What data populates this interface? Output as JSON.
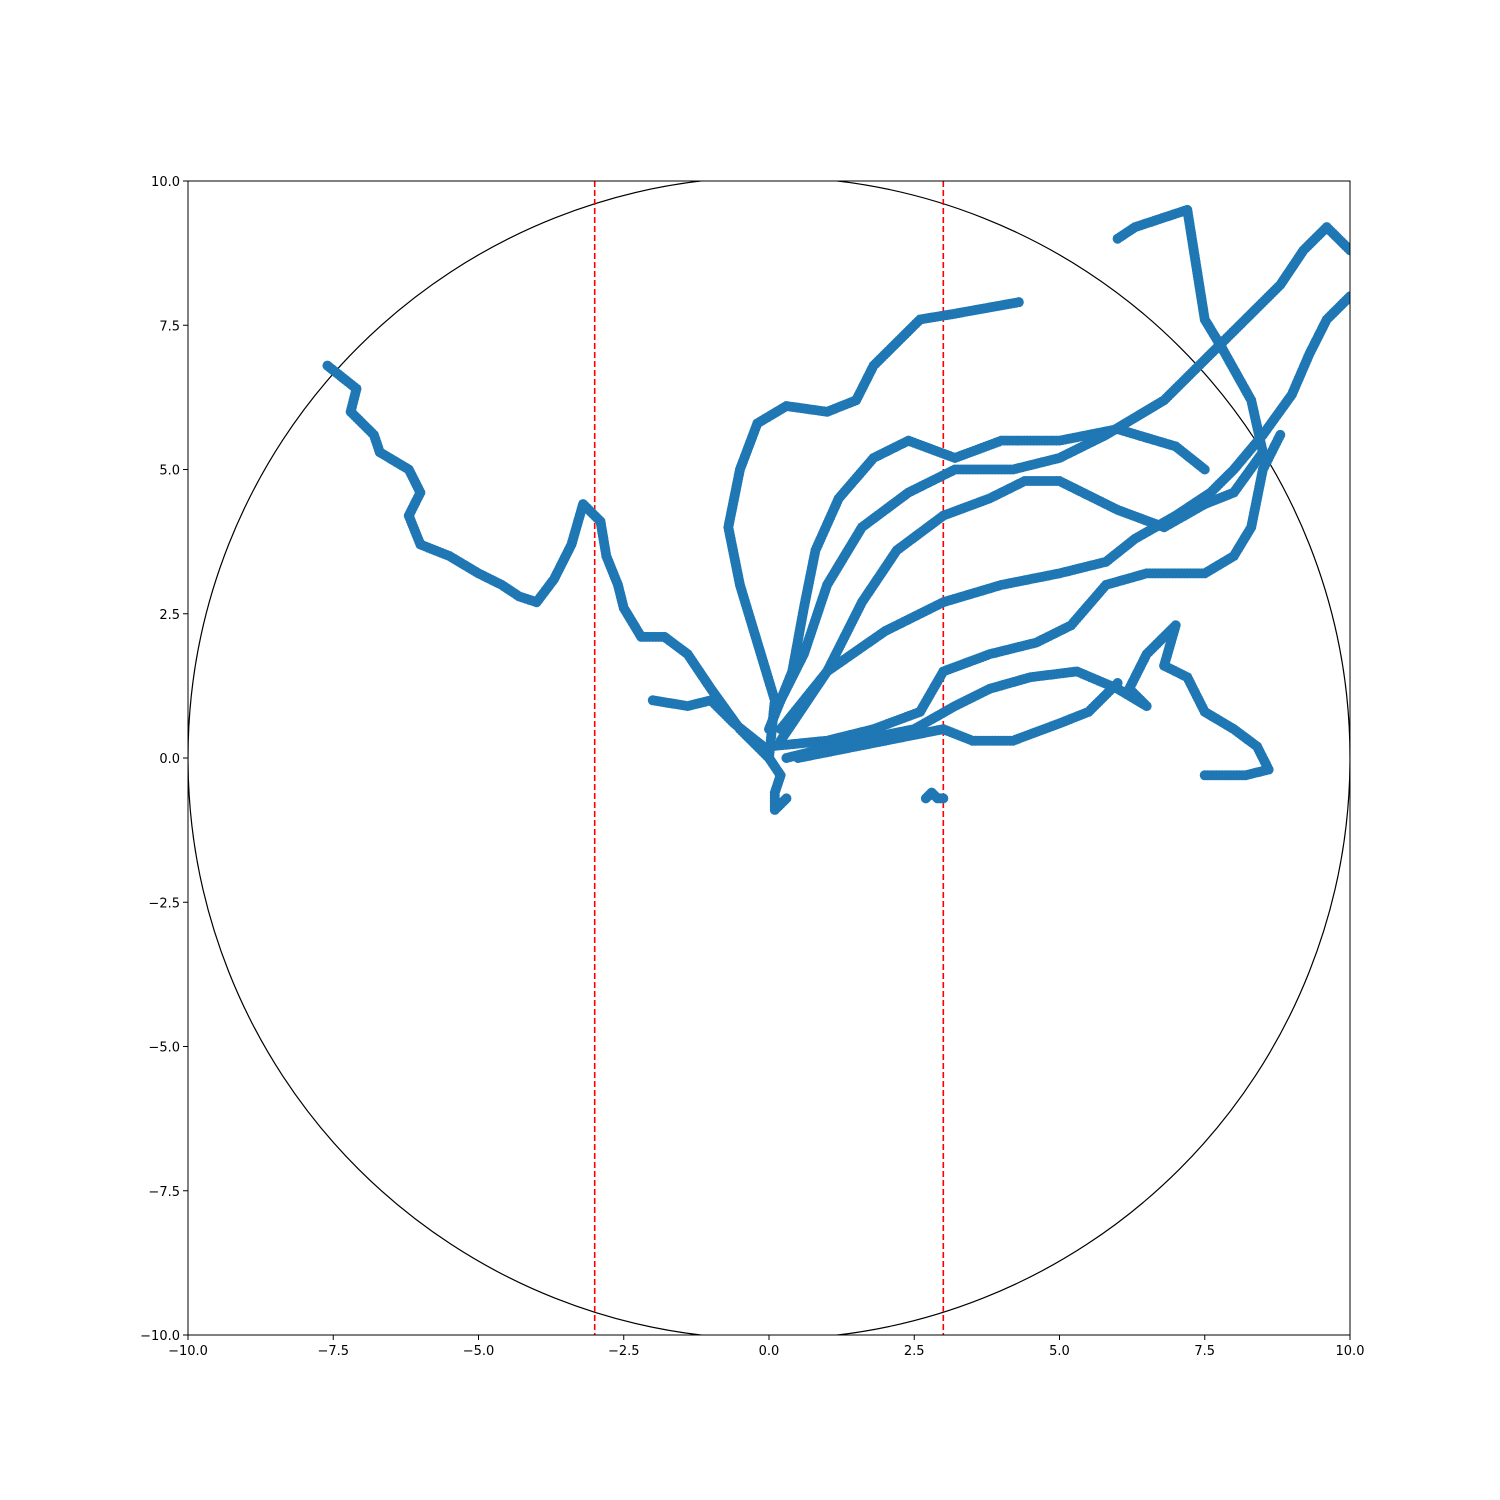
{
  "chart_data": {
    "type": "scatter",
    "title": "",
    "xlabel": "",
    "ylabel": "",
    "xlim": [
      -10,
      10
    ],
    "ylim": [
      -10,
      10
    ],
    "grid": false,
    "xticks": [
      "−10.0",
      "−7.5",
      "−5.0",
      "−2.5",
      "0.0",
      "2.5",
      "5.0",
      "7.5",
      "10.0"
    ],
    "yticks": [
      "−10.0",
      "−7.5",
      "−5.0",
      "−2.5",
      "0.0",
      "2.5",
      "5.0",
      "7.5",
      "10.0"
    ],
    "xtick_values": [
      -10,
      -7.5,
      -5,
      -2.5,
      0,
      2.5,
      5,
      7.5,
      10
    ],
    "ytick_values": [
      -10,
      -7.5,
      -5,
      -2.5,
      0,
      2.5,
      5,
      7.5,
      10
    ],
    "boundary_circle": {
      "center": [
        0,
        0
      ],
      "radius": 10,
      "color": "#000000"
    },
    "vertical_lines": [
      {
        "x": -3,
        "color": "#ff0000",
        "style": "dashed"
      },
      {
        "x": 3,
        "color": "#ff0000",
        "style": "dashed"
      }
    ],
    "point_color": "#1f77b4",
    "series": [
      {
        "values": [
          [
            0,
            0
          ],
          [
            -0.5,
            0.5
          ],
          [
            -1,
            1.2
          ],
          [
            -1.4,
            1.8
          ],
          [
            -1.8,
            2.1
          ],
          [
            -2.2,
            2.1
          ],
          [
            -2.5,
            2.6
          ],
          [
            -2.6,
            3.0
          ],
          [
            -2.8,
            3.5
          ],
          [
            -2.9,
            4.1
          ],
          [
            -3.2,
            4.4
          ],
          [
            -3.4,
            3.7
          ],
          [
            -3.7,
            3.1
          ],
          [
            -4.0,
            2.7
          ],
          [
            -4.3,
            2.8
          ],
          [
            -4.6,
            3.0
          ],
          [
            -5.0,
            3.2
          ],
          [
            -5.5,
            3.5
          ],
          [
            -6.0,
            3.7
          ],
          [
            -6.2,
            4.2
          ],
          [
            -6.0,
            4.6
          ],
          [
            -6.2,
            5.0
          ],
          [
            -6.7,
            5.3
          ],
          [
            -6.8,
            5.6
          ],
          [
            -7.2,
            6.0
          ],
          [
            -7.1,
            6.4
          ],
          [
            -7.6,
            6.8
          ]
        ]
      },
      {
        "values": [
          [
            0,
            0
          ],
          [
            0.1,
            1.0
          ],
          [
            -0.2,
            2.0
          ],
          [
            -0.5,
            3.0
          ],
          [
            -0.7,
            4.0
          ],
          [
            -0.5,
            5.0
          ],
          [
            -0.2,
            5.8
          ],
          [
            0.3,
            6.1
          ],
          [
            1.0,
            6.0
          ],
          [
            1.5,
            6.2
          ],
          [
            1.8,
            6.8
          ],
          [
            2.2,
            7.2
          ],
          [
            2.6,
            7.6
          ],
          [
            3.2,
            7.7
          ],
          [
            4.3,
            7.9
          ]
        ]
      },
      {
        "values": [
          [
            0,
            0.5
          ],
          [
            0.4,
            1.5
          ],
          [
            0.6,
            2.6
          ],
          [
            0.8,
            3.6
          ],
          [
            1.2,
            4.5
          ],
          [
            1.8,
            5.2
          ],
          [
            2.4,
            5.5
          ],
          [
            3.2,
            5.2
          ],
          [
            4.0,
            5.5
          ],
          [
            5.0,
            5.5
          ],
          [
            6.0,
            5.7
          ],
          [
            7.0,
            5.4
          ],
          [
            7.5,
            5.0
          ]
        ]
      },
      {
        "values": [
          [
            0.2,
            0.3
          ],
          [
            1.0,
            1.5
          ],
          [
            1.6,
            2.7
          ],
          [
            2.2,
            3.6
          ],
          [
            3.0,
            4.2
          ],
          [
            3.8,
            4.5
          ],
          [
            4.4,
            4.8
          ],
          [
            5.0,
            4.8
          ],
          [
            6.0,
            4.3
          ],
          [
            6.8,
            4.0
          ],
          [
            7.5,
            4.4
          ],
          [
            8.0,
            4.6
          ],
          [
            8.5,
            5.3
          ],
          [
            8.3,
            6.2
          ],
          [
            7.8,
            7.1
          ],
          [
            7.5,
            7.6
          ],
          [
            7.2,
            9.5
          ],
          [
            6.3,
            9.2
          ],
          [
            6.0,
            9.0
          ]
        ]
      },
      {
        "values": [
          [
            0,
            0.2
          ],
          [
            1.0,
            0.3
          ],
          [
            1.8,
            0.5
          ],
          [
            2.6,
            0.8
          ],
          [
            3.0,
            1.5
          ],
          [
            3.8,
            1.8
          ],
          [
            4.6,
            2.0
          ],
          [
            5.2,
            2.3
          ],
          [
            5.8,
            3.0
          ],
          [
            6.5,
            3.2
          ],
          [
            7.5,
            3.2
          ],
          [
            8.0,
            3.5
          ],
          [
            8.3,
            4.0
          ],
          [
            8.5,
            5.0
          ],
          [
            8.8,
            5.6
          ]
        ]
      },
      {
        "values": [
          [
            0.3,
            0
          ],
          [
            1.5,
            0.3
          ],
          [
            2.5,
            0.5
          ],
          [
            3.2,
            0.9
          ],
          [
            3.8,
            1.2
          ],
          [
            4.5,
            1.4
          ],
          [
            5.3,
            1.5
          ],
          [
            6.0,
            1.2
          ],
          [
            6.5,
            0.9
          ],
          [
            6.2,
            1.2
          ],
          [
            6.5,
            1.8
          ],
          [
            7.0,
            2.3
          ],
          [
            6.8,
            1.6
          ],
          [
            7.2,
            1.4
          ],
          [
            7.5,
            0.8
          ],
          [
            8.0,
            0.5
          ],
          [
            8.4,
            0.2
          ],
          [
            8.6,
            -0.2
          ],
          [
            8.2,
            -0.3
          ],
          [
            7.5,
            -0.3
          ]
        ]
      },
      {
        "values": [
          [
            0.5,
            0
          ],
          [
            1.5,
            0.2
          ],
          [
            2.0,
            0.3
          ],
          [
            3.0,
            0.5
          ],
          [
            3.5,
            0.3
          ],
          [
            4.2,
            0.3
          ],
          [
            5.0,
            0.6
          ],
          [
            5.5,
            0.8
          ],
          [
            6.0,
            1.3
          ]
        ]
      },
      {
        "values": [
          [
            0.2,
            0.5
          ],
          [
            1.0,
            1.5
          ],
          [
            2.0,
            2.2
          ],
          [
            3.0,
            2.7
          ],
          [
            4.0,
            3.0
          ],
          [
            5.0,
            3.2
          ],
          [
            5.8,
            3.4
          ],
          [
            6.3,
            3.8
          ],
          [
            7.0,
            4.2
          ],
          [
            7.6,
            4.6
          ],
          [
            8.0,
            5.0
          ],
          [
            8.5,
            5.6
          ],
          [
            9.0,
            6.3
          ],
          [
            9.3,
            7.0
          ],
          [
            9.6,
            7.6
          ],
          [
            10.0,
            8.0
          ]
        ]
      },
      {
        "values": [
          [
            0.1,
            0.8
          ],
          [
            0.6,
            1.8
          ],
          [
            1.0,
            3.0
          ],
          [
            1.6,
            4.0
          ],
          [
            2.4,
            4.6
          ],
          [
            3.2,
            5.0
          ],
          [
            4.2,
            5.0
          ],
          [
            5.0,
            5.2
          ],
          [
            5.8,
            5.6
          ],
          [
            6.8,
            6.2
          ],
          [
            7.6,
            7.0
          ],
          [
            8.2,
            7.6
          ],
          [
            8.8,
            8.2
          ],
          [
            9.2,
            8.8
          ],
          [
            9.6,
            9.2
          ],
          [
            10.0,
            8.8
          ]
        ]
      },
      {
        "values": [
          [
            -0.1,
            0.2
          ],
          [
            -0.6,
            0.6
          ],
          [
            -1.0,
            1.0
          ],
          [
            -1.4,
            0.9
          ],
          [
            -2.0,
            1.0
          ]
        ]
      },
      {
        "values": [
          [
            0,
            0
          ],
          [
            0.2,
            -0.3
          ],
          [
            0.1,
            -0.6
          ],
          [
            0.1,
            -0.9
          ],
          [
            0.3,
            -0.7
          ]
        ]
      },
      {
        "values": [
          [
            2.7,
            -0.7
          ],
          [
            2.8,
            -0.6
          ],
          [
            2.9,
            -0.7
          ],
          [
            3.0,
            -0.7
          ]
        ]
      }
    ]
  }
}
